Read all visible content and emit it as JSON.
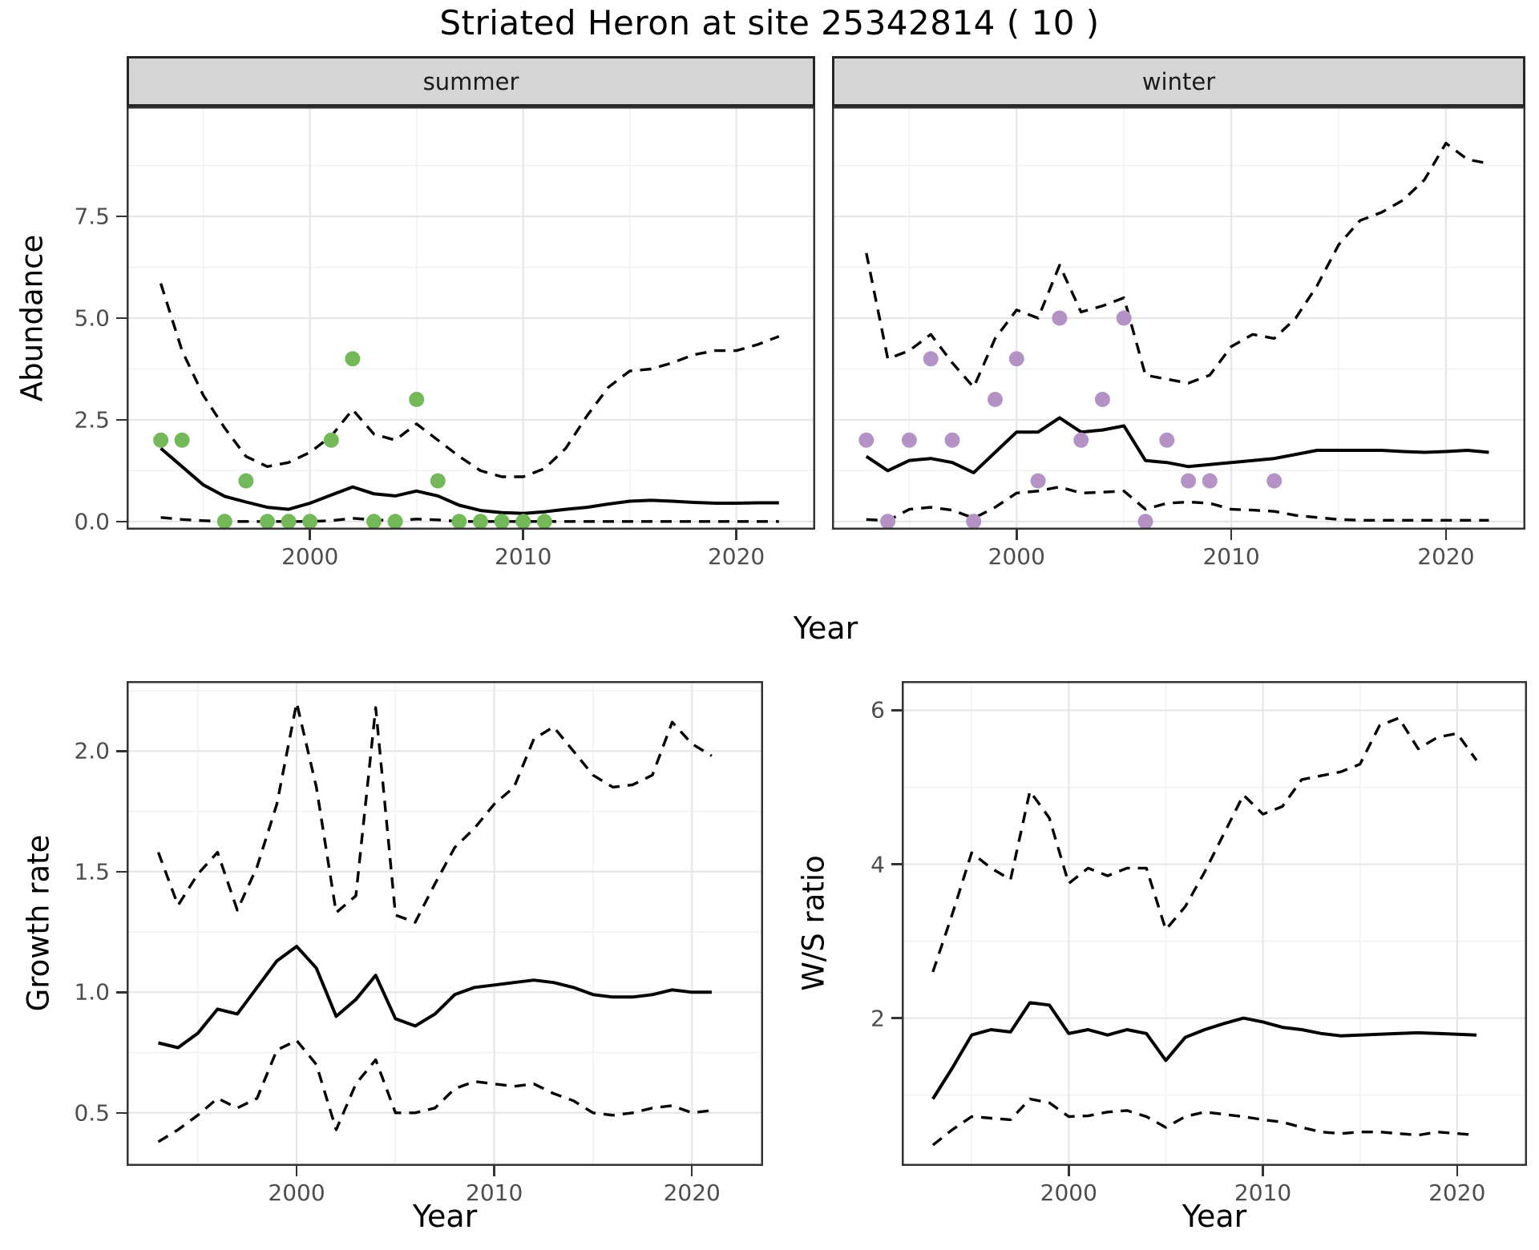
{
  "title": "Striated Heron at site 25342814 ( 10 )",
  "axis_titles": {
    "abundance": "Abundance",
    "year": "Year",
    "growth": "Growth rate",
    "ws": "W/S ratio"
  },
  "facet_labels": {
    "summer": "summer",
    "winter": "winter"
  },
  "colors": {
    "summer_points": "#73b95a",
    "winter_points": "#b592c6",
    "line": "#000000",
    "grid_major": "#e6e6e6",
    "grid_minor": "#f2f2f2",
    "panel_border": "#333333",
    "strip_bg": "#d5d5d5",
    "axis_text": "#4d4d4d"
  },
  "chart_data": {
    "type": "line",
    "title": "Striated Heron at site 25342814 ( 10 )",
    "panels": [
      {
        "id": "abundance_summer",
        "facet": "summer",
        "xlabel": "Year",
        "ylabel": "Abundance",
        "xlim": [
          1991.4,
          2023.7
        ],
        "ylim": [
          -0.2,
          10.2
        ],
        "x_ticks": [
          2000,
          2010,
          2020
        ],
        "x_tick_labels": [
          "2000",
          "2010",
          "2020"
        ],
        "x_minor": [
          1995,
          2005,
          2015
        ],
        "y_ticks": [
          0,
          2.5,
          5,
          7.5
        ],
        "y_tick_labels": [
          "0.0",
          "2.5",
          "5.0",
          "7.5"
        ],
        "y_minor": [
          1.25,
          3.75,
          6.25,
          8.75
        ],
        "years": [
          1993,
          1994,
          1995,
          1996,
          1997,
          1998,
          1999,
          2000,
          2001,
          2002,
          2003,
          2004,
          2005,
          2006,
          2007,
          2008,
          2009,
          2010,
          2011,
          2012,
          2013,
          2014,
          2015,
          2016,
          2017,
          2018,
          2019,
          2020,
          2021,
          2022
        ],
        "series": [
          {
            "name": "median",
            "style": "solid",
            "values": [
              1.8,
              1.35,
              0.9,
              0.62,
              0.48,
              0.35,
              0.3,
              0.45,
              0.65,
              0.85,
              0.68,
              0.63,
              0.75,
              0.63,
              0.4,
              0.27,
              0.22,
              0.2,
              0.24,
              0.3,
              0.35,
              0.43,
              0.5,
              0.52,
              0.5,
              0.47,
              0.45,
              0.45,
              0.46,
              0.46
            ]
          },
          {
            "name": "upper_ci",
            "style": "dashed",
            "values": [
              5.85,
              4.2,
              3.1,
              2.3,
              1.6,
              1.35,
              1.45,
              1.7,
              2.1,
              2.75,
              2.15,
              2.0,
              2.4,
              2.0,
              1.6,
              1.25,
              1.1,
              1.1,
              1.3,
              1.8,
              2.6,
              3.3,
              3.7,
              3.75,
              3.9,
              4.1,
              4.2,
              4.2,
              4.35,
              4.55
            ]
          },
          {
            "name": "lower_ci",
            "style": "dashed",
            "values": [
              0.1,
              0.05,
              0.02,
              0,
              0,
              0,
              0,
              0,
              0.02,
              0.08,
              0.04,
              0.02,
              0.06,
              0.04,
              0,
              0,
              0,
              0,
              0,
              0,
              0,
              0,
              0,
              0,
              0,
              0,
              0,
              0,
              0,
              0
            ]
          }
        ],
        "points": {
          "color_key": "summer_points",
          "data": [
            [
              1993,
              2
            ],
            [
              1994,
              2
            ],
            [
              1996,
              0
            ],
            [
              1997,
              1
            ],
            [
              1998,
              0
            ],
            [
              1999,
              0
            ],
            [
              2000,
              0
            ],
            [
              2001,
              2
            ],
            [
              2002,
              4
            ],
            [
              2003,
              0
            ],
            [
              2004,
              0
            ],
            [
              2005,
              3
            ],
            [
              2006,
              1
            ],
            [
              2007,
              0
            ],
            [
              2008,
              0
            ],
            [
              2009,
              0
            ],
            [
              2010,
              0
            ],
            [
              2011,
              0
            ]
          ]
        }
      },
      {
        "id": "abundance_winter",
        "facet": "winter",
        "xlabel": "Year",
        "ylabel": "Abundance",
        "xlim": [
          1991.4,
          2023.7
        ],
        "ylim": [
          -0.2,
          10.2
        ],
        "x_ticks": [
          2000,
          2010,
          2020
        ],
        "x_tick_labels": [
          "2000",
          "2010",
          "2020"
        ],
        "x_minor": [
          1995,
          2005,
          2015
        ],
        "y_ticks": [
          0,
          2.5,
          5,
          7.5
        ],
        "y_tick_labels": [
          "0.0",
          "2.5",
          "5.0",
          "7.5"
        ],
        "y_minor": [
          1.25,
          3.75,
          6.25,
          8.75
        ],
        "years": [
          1993,
          1994,
          1995,
          1996,
          1997,
          1998,
          1999,
          2000,
          2001,
          2002,
          2003,
          2004,
          2005,
          2006,
          2007,
          2008,
          2009,
          2010,
          2011,
          2012,
          2013,
          2014,
          2015,
          2016,
          2017,
          2018,
          2019,
          2020,
          2021,
          2022
        ],
        "series": [
          {
            "name": "median",
            "style": "solid",
            "values": [
              1.6,
              1.25,
              1.5,
              1.55,
              1.45,
              1.2,
              1.7,
              2.2,
              2.2,
              2.55,
              2.2,
              2.25,
              2.35,
              1.5,
              1.45,
              1.35,
              1.4,
              1.45,
              1.5,
              1.55,
              1.65,
              1.75,
              1.75,
              1.75,
              1.75,
              1.72,
              1.7,
              1.72,
              1.75,
              1.7
            ]
          },
          {
            "name": "upper_ci",
            "style": "dashed",
            "values": [
              6.6,
              4.0,
              4.2,
              4.6,
              3.9,
              3.3,
              4.5,
              5.2,
              5.0,
              6.3,
              5.15,
              5.3,
              5.5,
              3.6,
              3.5,
              3.4,
              3.6,
              4.3,
              4.6,
              4.5,
              5.0,
              5.8,
              6.8,
              7.4,
              7.6,
              7.9,
              8.4,
              9.3,
              8.9,
              8.8
            ]
          },
          {
            "name": "lower_ci",
            "style": "dashed",
            "values": [
              0.05,
              0.02,
              0.3,
              0.35,
              0.28,
              0.08,
              0.35,
              0.7,
              0.75,
              0.85,
              0.7,
              0.72,
              0.75,
              0.3,
              0.45,
              0.48,
              0.45,
              0.3,
              0.28,
              0.25,
              0.15,
              0.1,
              0.05,
              0.03,
              0.03,
              0.03,
              0.03,
              0.03,
              0.03,
              0.03
            ]
          }
        ],
        "points": {
          "color_key": "winter_points",
          "data": [
            [
              1993,
              2
            ],
            [
              1994,
              0
            ],
            [
              1995,
              2
            ],
            [
              1996,
              4
            ],
            [
              1997,
              2
            ],
            [
              1998,
              0
            ],
            [
              1999,
              3
            ],
            [
              2000,
              4
            ],
            [
              2001,
              1
            ],
            [
              2002,
              5
            ],
            [
              2003,
              2
            ],
            [
              2004,
              3
            ],
            [
              2005,
              5
            ],
            [
              2006,
              0
            ],
            [
              2007,
              2
            ],
            [
              2008,
              1
            ],
            [
              2009,
              1
            ],
            [
              2012,
              1
            ]
          ]
        }
      },
      {
        "id": "growth_rate",
        "facet": null,
        "xlabel": "Year",
        "ylabel": "Growth rate",
        "xlim": [
          1991.4,
          2023.6
        ],
        "ylim": [
          0.28,
          2.29
        ],
        "x_ticks": [
          2000,
          2010,
          2020
        ],
        "x_tick_labels": [
          "2000",
          "2010",
          "2020"
        ],
        "x_minor": [
          1995,
          2005,
          2015
        ],
        "y_ticks": [
          0.5,
          1.0,
          1.5,
          2.0
        ],
        "y_tick_labels": [
          "0.5",
          "1.0",
          "1.5",
          "2.0"
        ],
        "y_minor": [
          0.75,
          1.25,
          1.75,
          2.25
        ],
        "years": [
          1993,
          1994,
          1995,
          1996,
          1997,
          1998,
          1999,
          2000,
          2001,
          2002,
          2003,
          2004,
          2005,
          2006,
          2007,
          2008,
          2009,
          2010,
          2011,
          2012,
          2013,
          2014,
          2015,
          2016,
          2017,
          2018,
          2019,
          2020,
          2021
        ],
        "series": [
          {
            "name": "median",
            "style": "solid",
            "values": [
              0.79,
              0.77,
              0.83,
              0.93,
              0.91,
              1.02,
              1.13,
              1.19,
              1.1,
              0.9,
              0.97,
              1.07,
              0.89,
              0.86,
              0.91,
              0.99,
              1.02,
              1.03,
              1.04,
              1.05,
              1.04,
              1.02,
              0.99,
              0.98,
              0.98,
              0.99,
              1.01,
              1.0,
              1.0
            ]
          },
          {
            "name": "upper_ci",
            "style": "dashed",
            "values": [
              1.58,
              1.36,
              1.49,
              1.58,
              1.34,
              1.52,
              1.78,
              2.2,
              1.85,
              1.33,
              1.4,
              2.18,
              1.32,
              1.29,
              1.45,
              1.6,
              1.68,
              1.78,
              1.85,
              2.05,
              2.1,
              2.0,
              1.9,
              1.85,
              1.86,
              1.9,
              2.12,
              2.03,
              1.98
            ]
          },
          {
            "name": "lower_ci",
            "style": "dashed",
            "values": [
              0.38,
              0.43,
              0.49,
              0.56,
              0.52,
              0.56,
              0.76,
              0.8,
              0.7,
              0.43,
              0.62,
              0.72,
              0.5,
              0.5,
              0.52,
              0.6,
              0.63,
              0.62,
              0.61,
              0.62,
              0.58,
              0.55,
              0.5,
              0.49,
              0.5,
              0.52,
              0.53,
              0.5,
              0.51
            ]
          }
        ],
        "points": null
      },
      {
        "id": "ws_ratio",
        "facet": null,
        "xlabel": "Year",
        "ylabel": "W/S ratio",
        "xlim": [
          1991.4,
          2023.6
        ],
        "ylim": [
          0.08,
          6.38
        ],
        "x_ticks": [
          2000,
          2010,
          2020
        ],
        "x_tick_labels": [
          "2000",
          "2010",
          "2020"
        ],
        "x_minor": [
          1995,
          2005,
          2015
        ],
        "y_ticks": [
          2,
          4,
          6
        ],
        "y_tick_labels": [
          "2",
          "4",
          "6"
        ],
        "y_minor": [
          1,
          3,
          5
        ],
        "years": [
          1993,
          1994,
          1995,
          1996,
          1997,
          1998,
          1999,
          2000,
          2001,
          2002,
          2003,
          2004,
          2005,
          2006,
          2007,
          2008,
          2009,
          2010,
          2011,
          2012,
          2013,
          2014,
          2015,
          2016,
          2017,
          2018,
          2019,
          2020,
          2021
        ],
        "series": [
          {
            "name": "median",
            "style": "solid",
            "values": [
              0.95,
              1.35,
              1.78,
              1.85,
              1.82,
              2.2,
              2.17,
              1.8,
              1.85,
              1.78,
              1.85,
              1.8,
              1.45,
              1.75,
              1.85,
              1.93,
              2.0,
              1.95,
              1.88,
              1.85,
              1.8,
              1.77,
              1.78,
              1.79,
              1.8,
              1.81,
              1.8,
              1.79,
              1.78
            ]
          },
          {
            "name": "upper_ci",
            "style": "dashed",
            "values": [
              2.6,
              3.35,
              4.15,
              3.95,
              3.8,
              4.95,
              4.6,
              3.75,
              3.95,
              3.85,
              3.95,
              3.95,
              3.15,
              3.45,
              3.9,
              4.4,
              4.9,
              4.65,
              4.75,
              5.1,
              5.15,
              5.2,
              5.3,
              5.8,
              5.9,
              5.5,
              5.65,
              5.7,
              5.35
            ]
          },
          {
            "name": "lower_ci",
            "style": "dashed",
            "values": [
              0.35,
              0.55,
              0.72,
              0.7,
              0.68,
              0.95,
              0.9,
              0.72,
              0.73,
              0.78,
              0.8,
              0.72,
              0.58,
              0.72,
              0.78,
              0.75,
              0.72,
              0.68,
              0.65,
              0.58,
              0.52,
              0.5,
              0.52,
              0.52,
              0.5,
              0.48,
              0.52,
              0.5,
              0.48
            ]
          }
        ],
        "points": null
      }
    ]
  }
}
